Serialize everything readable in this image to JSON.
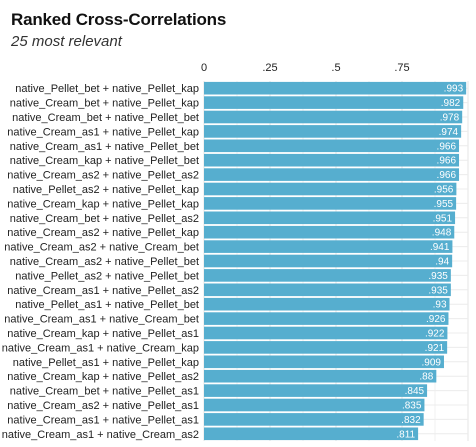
{
  "chart_data": {
    "type": "bar",
    "orientation": "horizontal",
    "title": "Ranked Cross-Correlations",
    "subtitle": "25 most relevant",
    "xlim": [
      0,
      1
    ],
    "x_ticks": [
      {
        "value": 0,
        "label": "0"
      },
      {
        "value": 0.25,
        "label": ".25"
      },
      {
        "value": 0.5,
        "label": ".5"
      },
      {
        "value": 0.75,
        "label": ".75"
      }
    ],
    "grid": true,
    "bar_color": "#56aecf",
    "categories": [
      "native_Pellet_bet + native_Pellet_kap",
      "native_Cream_bet + native_Pellet_kap",
      "native_Cream_bet + native_Pellet_bet",
      "native_Cream_as1 + native_Pellet_kap",
      "native_Cream_as1 + native_Pellet_bet",
      "native_Cream_kap + native_Pellet_bet",
      "native_Cream_as2 + native_Pellet_as2",
      "native_Pellet_as2 + native_Pellet_kap",
      "native_Cream_kap + native_Pellet_kap",
      "native_Cream_bet + native_Pellet_as2",
      "native_Cream_as2 + native_Pellet_kap",
      "native_Cream_as2 + native_Cream_bet",
      "native_Cream_as2 + native_Pellet_bet",
      "native_Pellet_as2 + native_Pellet_bet",
      "native_Cream_as1 + native_Pellet_as2",
      "native_Pellet_as1 + native_Pellet_bet",
      "native_Cream_as1 + native_Cream_bet",
      "native_Cream_kap + native_Pellet_as1",
      "native_Cream_as1 + native_Cream_kap",
      "native_Pellet_as1 + native_Pellet_kap",
      "native_Cream_kap + native_Pellet_as2",
      "native_Cream_bet + native_Pellet_as1",
      "native_Cream_as2 + native_Pellet_as1",
      "native_Cream_as1 + native_Pellet_as1",
      "native_Cream_as1 + native_Cream_as2"
    ],
    "values": [
      0.993,
      0.982,
      0.978,
      0.974,
      0.966,
      0.966,
      0.966,
      0.956,
      0.955,
      0.951,
      0.948,
      0.941,
      0.94,
      0.935,
      0.935,
      0.93,
      0.926,
      0.922,
      0.921,
      0.909,
      0.88,
      0.845,
      0.835,
      0.832,
      0.811
    ],
    "value_labels": [
      ".993",
      ".982",
      ".978",
      ".974",
      ".966",
      ".966",
      ".966",
      ".956",
      ".955",
      ".951",
      ".948",
      ".941",
      ".94",
      ".935",
      ".935",
      ".93",
      ".926",
      ".922",
      ".921",
      ".909",
      ".88",
      ".845",
      ".835",
      ".832",
      ".811"
    ]
  }
}
